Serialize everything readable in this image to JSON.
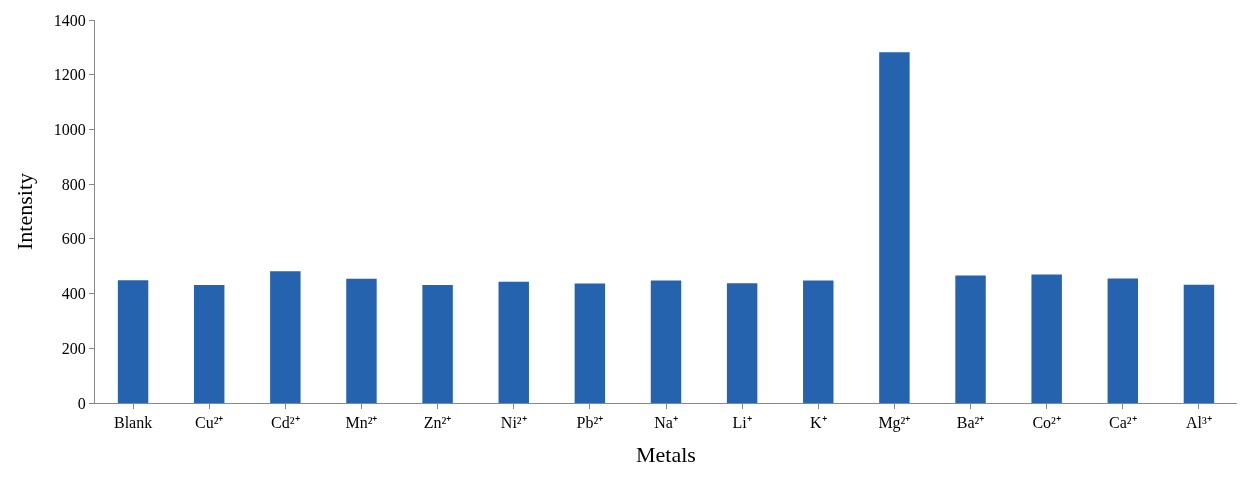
{
  "chart_data": {
    "type": "bar",
    "xlabel": "Metals",
    "ylabel": "Intensity",
    "categories": [
      "Blank",
      "Cu²⁺",
      "Cd²⁺",
      "Mn²⁺",
      "Zn²⁺",
      "Ni²⁺",
      "Pb²⁺",
      "Na⁺",
      "Li⁺",
      "K⁺",
      "Mg²⁺",
      "Ba²⁺",
      "Co²⁺",
      "Ca²⁺",
      "Al³⁺"
    ],
    "values": [
      449,
      431,
      482,
      454,
      431,
      443,
      437,
      448,
      438,
      448,
      1282,
      466,
      470,
      455,
      432
    ],
    "color": "#2563ae",
    "ylim": [
      0,
      1400
    ],
    "yticks": [
      0,
      200,
      400,
      600,
      800,
      1000,
      1200,
      1400
    ]
  }
}
